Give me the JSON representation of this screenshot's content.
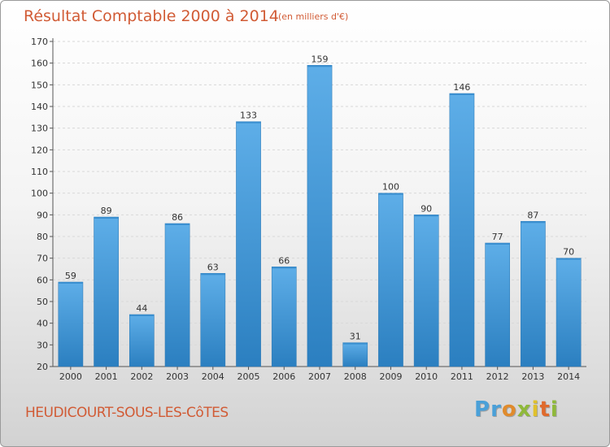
{
  "header": {
    "title": "Résultat Comptable 2000 à 2014",
    "subtitle": "(en milliers d'€)"
  },
  "footer": {
    "place": "HEUDICOURT-SOUS-LES-CôTES",
    "logo": "Proxiti"
  },
  "colors": {
    "title": "#d15b35",
    "bar_top": "#5eaee8",
    "bar_bottom": "#2b7fc0",
    "logo_letters": [
      "#4aa0d8",
      "#4aa0d8",
      "#e08b2c",
      "#8fb93a",
      "#e0c12c",
      "#e06a2c",
      "#8fb93a"
    ]
  },
  "chart_data": {
    "type": "bar",
    "title": "Résultat Comptable 2000 à 2014",
    "subtitle": "(en milliers d'€)",
    "xlabel": "",
    "ylabel": "",
    "categories": [
      "2000",
      "2001",
      "2002",
      "2003",
      "2004",
      "2005",
      "2006",
      "2007",
      "2008",
      "2009",
      "2010",
      "2011",
      "2012",
      "2013",
      "2014"
    ],
    "values": [
      59,
      89,
      44,
      86,
      63,
      133,
      66,
      159,
      31,
      100,
      90,
      146,
      77,
      87,
      70
    ],
    "ylim": [
      20,
      170
    ],
    "yticks": [
      20,
      30,
      40,
      50,
      60,
      70,
      80,
      90,
      100,
      110,
      120,
      130,
      140,
      150,
      160,
      170
    ],
    "grid": true,
    "legend": "none"
  }
}
